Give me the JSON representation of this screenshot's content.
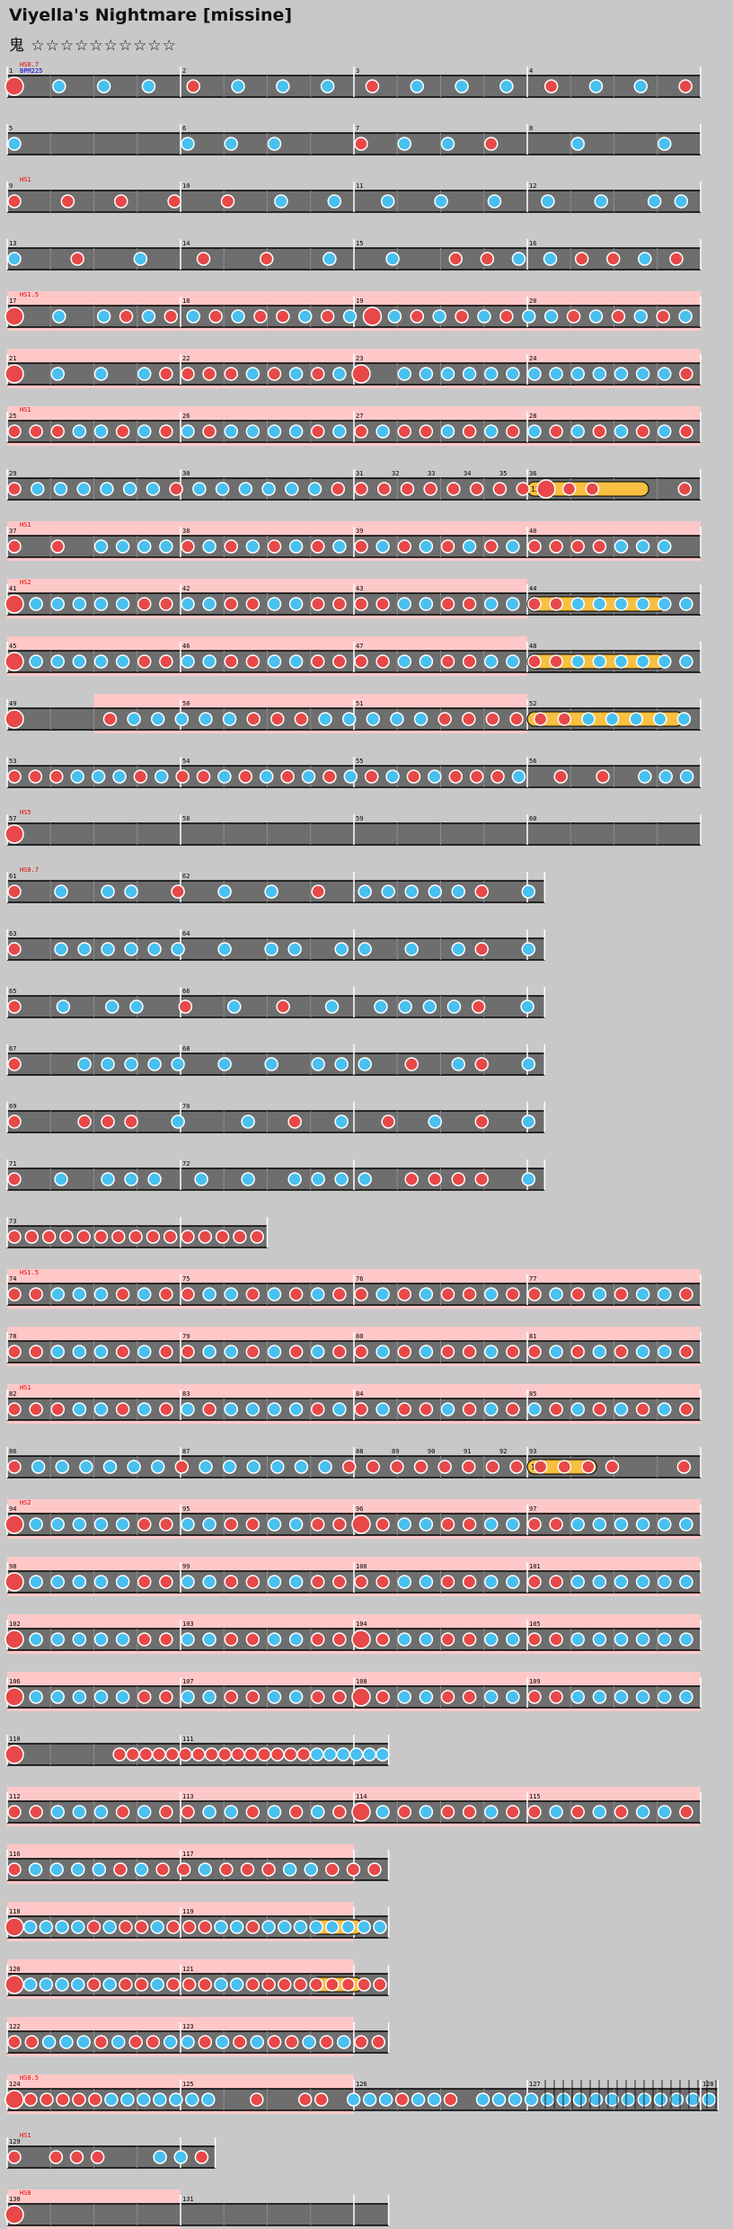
{
  "header": {
    "title": "Viyella's Nightmare [missine]",
    "difficulty_label": "鬼",
    "stars": "☆☆☆☆☆☆☆☆☆☆"
  },
  "first_row_labels": [
    "HS0.7",
    "BPM225"
  ],
  "colors": {
    "background": "#c8c8c8",
    "lane": "#6e6e6e",
    "gogo_band": "#ffc8c8",
    "don": "#e84848",
    "ka": "#48c0f0",
    "drumroll": "#f8c040",
    "scroll_label": "#e00000",
    "bpm_label": "#0000e0"
  },
  "rows": [
    {
      "measures": [
        "1",
        "2",
        "3",
        "4"
      ],
      "scroll": "HS0.7",
      "length": 4,
      "pattern": "D.K.K.K.D.K.K.K.D.K.K.K.D.K.K.D",
      "big": [
        0
      ]
    },
    {
      "measures": [
        "5",
        "6",
        "7",
        "8"
      ],
      "scroll": "",
      "length": 4,
      "pattern": "K...KKK.DKKD.K.K",
      "big": []
    },
    {
      "measures": [
        "9",
        "10",
        "11",
        "12"
      ],
      "scroll": "HS1",
      "length": 4,
      "pattern": "D.D.D.D.D.K.K.K.K.K.K.K.KK",
      "big": []
    },
    {
      "measures": [
        "13",
        "14",
        "15",
        "16"
      ],
      "scroll": "",
      "length": 4,
      "pattern": "K.D.K.D.D.K.K.DDKKDDKD",
      "big": []
    },
    {
      "measures": [
        "17",
        "18",
        "19",
        "20"
      ],
      "scroll": "HS1.5",
      "length": 4,
      "gogo": [
        [
          0,
          4
        ]
      ],
      "pattern": "D.K.KDKDKDKDDKDKDKDKDKDKKDKDKDK",
      "big": [
        0,
        16
      ]
    },
    {
      "measures": [
        "21",
        "22",
        "23",
        "24"
      ],
      "scroll": "",
      "length": 4,
      "gogo": [
        [
          0,
          4
        ]
      ],
      "pattern": "D.K.K.KDDDDKDKDKD.KKKKKKKKKKKKKD",
      "big": [
        0,
        16
      ]
    },
    {
      "measures": [
        "25",
        "26",
        "27",
        "28"
      ],
      "scroll": "HS1",
      "length": 4,
      "gogo": [
        [
          0,
          4
        ]
      ],
      "pattern": "DDDKKDKDKDKKKKDKDKDDKDKDKDKDKDKD",
      "big": []
    },
    {
      "measures": [
        "29",
        "30",
        "31",
        "32",
        "33",
        "34",
        "35",
        "36"
      ],
      "scroll": "",
      "length": 4,
      "pattern": "DKKKKKKDKKKKKKDDDDDDDDDDDD...D",
      "big": [
        23
      ],
      "rolls": [
        [
          3,
          3.7,
          "13"
        ]
      ]
    },
    {
      "measures": [
        "37",
        "38",
        "39",
        "40"
      ],
      "scroll": "HS1",
      "length": 4,
      "gogo": [
        [
          0,
          4
        ]
      ],
      "pattern": "D.D.KKKKDKDKDKDKDKDKDKDKDDDDKKK.",
      "big": []
    },
    {
      "measures": [
        "41",
        "42",
        "43",
        "44"
      ],
      "scroll": "HS2",
      "length": 4,
      "gogo": [
        [
          0,
          3
        ]
      ],
      "pattern": "DKKKKKDDKKDDKKDDDDKKDDKKDDKKKKKK",
      "big": [
        0
      ],
      "rolls": [
        [
          3,
          3.8,
          "3"
        ]
      ]
    },
    {
      "measures": [
        "45",
        "46",
        "47",
        "48"
      ],
      "scroll": "",
      "length": 4,
      "gogo": [
        [
          0,
          3
        ]
      ],
      "pattern": "DKKKKKDDKKDDKKDDDDKKDDKKDDKKKKKK",
      "big": [
        0
      ],
      "rolls": [
        [
          3,
          3.8,
          ""
        ]
      ]
    },
    {
      "measures": [
        "49",
        "50",
        "51",
        "52"
      ],
      "scroll": "",
      "length": 4,
      "gogo": [
        [
          0.5,
          3
        ]
      ],
      "pattern": "D...DKKKKKDDDKKKKKDDDDDDKKKKK",
      "big": [
        0
      ],
      "rolls": [
        [
          3,
          3.9,
          ""
        ]
      ]
    },
    {
      "measures": [
        "53",
        "54",
        "55",
        "56"
      ],
      "scroll": "",
      "length": 4,
      "pattern": "DDDKKKDKDDKDKDKDKDKDKDDDK.D.D.KKK",
      "big": []
    },
    {
      "measures": [
        "57",
        "58",
        "59",
        "60"
      ],
      "scroll": "HS5",
      "length": 4,
      "pattern": "D",
      "big": [
        0
      ]
    },
    {
      "measures": [
        "61",
        "62"
      ],
      "scroll": "HS0.7",
      "length": 3.1,
      "pattern": "D.K.KK.D.K.K.D.KKKKKD.K",
      "big": []
    },
    {
      "measures": [
        "63",
        "64"
      ],
      "scroll": "",
      "length": 3.1,
      "pattern": "D.KKKKKK.K.KK.KK.K.KD.K",
      "big": []
    },
    {
      "measures": [
        "65",
        "66"
      ],
      "scroll": "",
      "length": 3.1,
      "pattern": "D.K.KK.D.K.D.K.KKKKD.K",
      "big": []
    },
    {
      "measures": [
        "67",
        "68"
      ],
      "scroll": "",
      "length": 3.1,
      "pattern": "D..KKKKK.K.K.KKK.D.KD.K",
      "big": []
    },
    {
      "measures": [
        "69",
        "70"
      ],
      "scroll": "",
      "length": 3.1,
      "pattern": "D..DDD.K..K.D.K.D.K.D.K",
      "big": []
    },
    {
      "measures": [
        "71",
        "72"
      ],
      "scroll": "",
      "length": 3.1,
      "pattern": "D.K.KKK.K.K.KKKK.DDDD.K",
      "big": []
    },
    {
      "measures": [
        "73"
      ],
      "scroll": "",
      "length": 1.5,
      "pattern": "DDDDDDDDDDDDDDD",
      "big": []
    },
    {
      "measures": [
        "74",
        "75",
        "76",
        "77"
      ],
      "scroll": "HS1.5",
      "length": 4,
      "gogo": [
        [
          0,
          4
        ]
      ],
      "pattern": "DDKKKDKDDKKDKDKDDKDKDDKDDKDKDKKD",
      "big": []
    },
    {
      "measures": [
        "78",
        "79",
        "80",
        "81"
      ],
      "scroll": "",
      "length": 4,
      "gogo": [
        [
          0,
          4
        ]
      ],
      "pattern": "DDKKKDKDDKKDKDKDDKDKDDKDDKDKDKKD",
      "big": []
    },
    {
      "measures": [
        "82",
        "83",
        "84",
        "85"
      ],
      "scroll": "HS1",
      "length": 4,
      "gogo": [
        [
          0,
          4
        ]
      ],
      "pattern": "DDDKKDKDKDKKKKDKDKDDKDKDKDKDKDKD",
      "big": []
    },
    {
      "measures": [
        "86",
        "87",
        "88",
        "89",
        "90",
        "91",
        "92",
        "93"
      ],
      "scroll": "",
      "length": 4,
      "pattern": "DKKKKKKDKKKKKKDDDDDDDDDDDD..D",
      "big": [
        27
      ],
      "rolls": [
        [
          3,
          3.4,
          "13"
        ]
      ]
    },
    {
      "measures": [
        "94",
        "95",
        "96",
        "97"
      ],
      "scroll": "HS2",
      "length": 4,
      "gogo": [
        [
          0,
          4
        ]
      ],
      "pattern": "DKKKKKDDKKDDKKDDDDKKDDKKDDKKKKKK",
      "big": [
        0,
        16
      ]
    },
    {
      "measures": [
        "98",
        "99",
        "100",
        "101"
      ],
      "scroll": "",
      "length": 4,
      "gogo": [
        [
          0,
          4
        ]
      ],
      "pattern": "DKKKKKDDKKDDKKDDDDKKDDKKDDKKKKKK",
      "big": [
        0
      ]
    },
    {
      "measures": [
        "102",
        "103",
        "104",
        "105"
      ],
      "scroll": "",
      "length": 4,
      "gogo": [
        [
          0,
          4
        ]
      ],
      "pattern": "DKKKKKDDKKDDKKDDDDKKDDKKDDKKKKKK",
      "big": [
        0,
        16
      ]
    },
    {
      "measures": [
        "106",
        "107",
        "108",
        "109"
      ],
      "scroll": "",
      "length": 4,
      "gogo": [
        [
          0,
          4
        ]
      ],
      "pattern": "DKKKKKDDKKDDKKDDDDKKDDKKDDKKKKKK",
      "big": [
        0,
        16
      ]
    },
    {
      "measures": [
        "110",
        "111"
      ],
      "scroll": "",
      "length": 2.2,
      "pattern": "D.......DDDDDDDDDDDDDDDKKKKKK",
      "big": [
        0
      ]
    },
    {
      "measures": [
        "112",
        "113",
        "114",
        "115"
      ],
      "scroll": "",
      "length": 4,
      "gogo": [
        [
          0,
          4
        ]
      ],
      "pattern": "DDKKKDKDDKKDKDKDDKDKDDKDDKDKDKKD",
      "big": [
        16
      ]
    },
    {
      "measures": [
        "116",
        "117"
      ],
      "scroll": "",
      "length": 2.2,
      "gogo": [
        [
          0,
          2
        ]
      ],
      "pattern": "DKKKKDKDDKDDDKKDDD",
      "big": []
    },
    {
      "measures": [
        "118",
        "119"
      ],
      "scroll": "",
      "length": 2.2,
      "gogo": [
        [
          0,
          2
        ]
      ],
      "pattern": "DKKKKDKDDKDDDKKDKKKKKKKK",
      "big": [
        0
      ],
      "rolls": [
        [
          1.75,
          2.05,
          ""
        ]
      ]
    },
    {
      "measures": [
        "120",
        "121"
      ],
      "scroll": "",
      "length": 2.2,
      "gogo": [
        [
          0,
          2
        ]
      ],
      "pattern": "DKKKKDKDDKDDDKKDDDDDDDDD",
      "big": [
        0
      ],
      "rolls": [
        [
          1.75,
          2.05,
          ""
        ]
      ]
    },
    {
      "measures": [
        "122",
        "123"
      ],
      "scroll": "",
      "length": 2.2,
      "gogo": [
        [
          0,
          2
        ]
      ],
      "pattern": "DDKKKDKDDKKDKDKDDKDKDD",
      "big": []
    },
    {
      "measures": [
        "124",
        "125",
        "126",
        "127",
        "128"
      ],
      "scroll": "HS0.5",
      "length": 4.1,
      "gogo": [
        [
          0,
          2
        ]
      ],
      "pattern": "DDDDDDKKKKKKK..D..DD.KKKDKKD.KKKKKKKKKKKKKKK",
      "big": [
        0
      ],
      "ticks": true
    },
    {
      "measures": [
        "129"
      ],
      "scroll": "HS1",
      "length": 1.2,
      "pattern": "D.DDD..KKD",
      "big": []
    },
    {
      "measures": [
        "130",
        "131"
      ],
      "scroll": "HS8",
      "length": 2.2,
      "gogo": [
        [
          0,
          1
        ]
      ],
      "pattern": "D",
      "big": [
        0
      ]
    }
  ]
}
